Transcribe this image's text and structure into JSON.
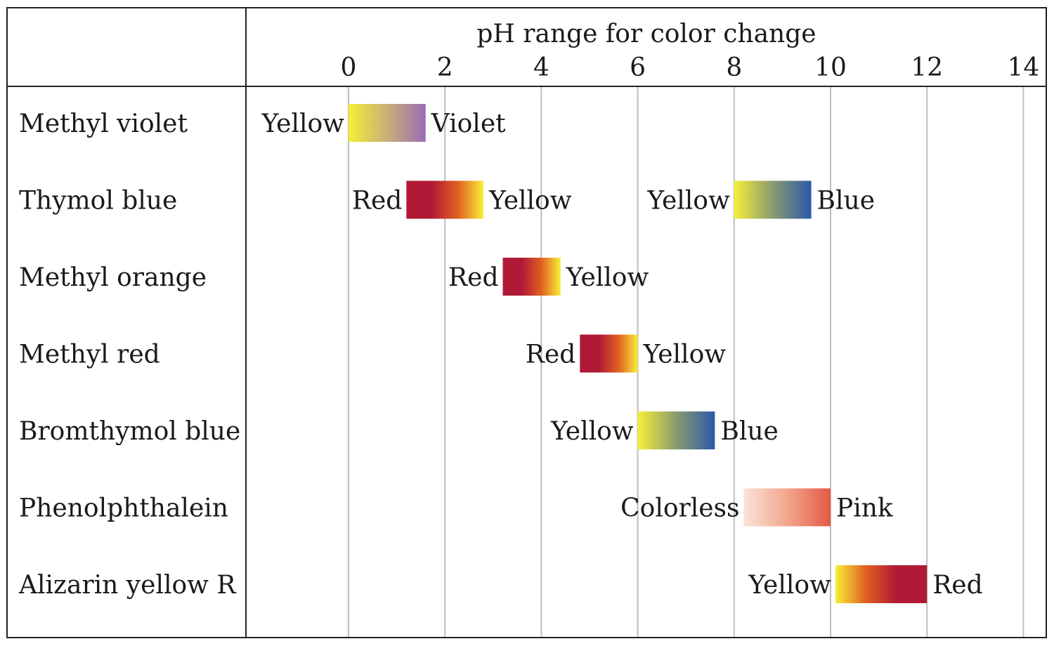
{
  "chart_data": {
    "type": "range-bar",
    "title": "pH range for color change",
    "x_ticks": [
      0,
      2,
      4,
      6,
      8,
      10,
      12,
      14
    ],
    "xlim": [
      0,
      14
    ],
    "grid": true,
    "indicators": [
      {
        "name": "Methyl violet",
        "ranges": [
          {
            "start": 0.0,
            "end": 1.6,
            "low_color_name": "Yellow",
            "high_color_name": "Violet",
            "gradient": [
              "#f7ef3a",
              "#9b6cb5"
            ]
          }
        ]
      },
      {
        "name": "Thymol blue",
        "ranges": [
          {
            "start": 1.2,
            "end": 2.8,
            "low_color_name": "Red",
            "high_color_name": "Yellow",
            "gradient": [
              "#b01a36",
              "#b01a36",
              "#e06020",
              "#f7ef3a"
            ]
          },
          {
            "start": 8.0,
            "end": 9.6,
            "low_color_name": "Yellow",
            "high_color_name": "Blue",
            "gradient": [
              "#f7ef3a",
              "#8a9a70",
              "#2a5aa8"
            ]
          }
        ]
      },
      {
        "name": "Methyl orange",
        "ranges": [
          {
            "start": 3.2,
            "end": 4.4,
            "low_color_name": "Red",
            "high_color_name": "Yellow",
            "gradient": [
              "#b01a36",
              "#b01a36",
              "#e06020",
              "#f7ef3a"
            ]
          }
        ]
      },
      {
        "name": "Methyl red",
        "ranges": [
          {
            "start": 4.8,
            "end": 6.0,
            "low_color_name": "Red",
            "high_color_name": "Yellow",
            "gradient": [
              "#b01a36",
              "#b01a36",
              "#e06020",
              "#f7ef3a"
            ]
          }
        ]
      },
      {
        "name": "Bromthymol blue",
        "ranges": [
          {
            "start": 6.0,
            "end": 7.6,
            "low_color_name": "Yellow",
            "high_color_name": "Blue",
            "gradient": [
              "#f7ef3a",
              "#8a9a70",
              "#2a5aa8"
            ]
          }
        ]
      },
      {
        "name": "Phenolphthalein",
        "ranges": [
          {
            "start": 8.2,
            "end": 10.0,
            "low_color_name": "Colorless",
            "high_color_name": "Pink",
            "gradient": [
              "#fbe3d8",
              "#f2a68d",
              "#e35a45"
            ]
          }
        ]
      },
      {
        "name": "Alizarin yellow R",
        "ranges": [
          {
            "start": 10.1,
            "end": 12.0,
            "low_color_name": "Yellow",
            "high_color_name": "Red",
            "gradient": [
              "#f7ef3a",
              "#e06020",
              "#b01a36",
              "#b01a36"
            ]
          }
        ]
      }
    ]
  }
}
